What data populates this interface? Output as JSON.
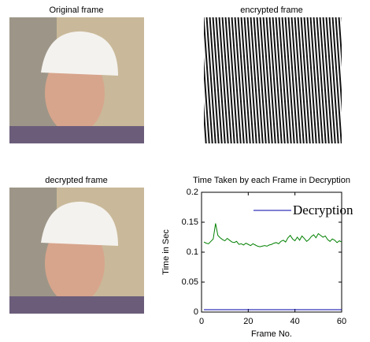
{
  "panels": {
    "original_title": "Original frame",
    "encrypted_title": "encrypted frame",
    "decrypted_title": "decrypted frame"
  },
  "chart_data": {
    "type": "line",
    "title": "Time Taken by each Frame in Decryption",
    "x_label": "Frame No.",
    "y_label": "Time in Sec",
    "x": [
      1,
      2,
      3,
      4,
      5,
      6,
      7,
      8,
      9,
      10,
      11,
      12,
      13,
      14,
      15,
      16,
      17,
      18,
      19,
      20,
      21,
      22,
      23,
      24,
      25,
      26,
      27,
      28,
      29,
      30,
      31,
      32,
      33,
      34,
      35,
      36,
      37,
      38,
      39,
      40,
      41,
      42,
      43,
      44,
      45,
      46,
      47,
      48,
      49,
      50,
      51,
      52,
      53,
      54,
      55,
      56,
      57,
      58,
      59,
      60
    ],
    "series": [
      {
        "name": "Decryption",
        "color": "#0000aa",
        "values": [
          0.004,
          0.004,
          0.004,
          0.004,
          0.004,
          0.004,
          0.004,
          0.004,
          0.004,
          0.004,
          0.004,
          0.004,
          0.004,
          0.004,
          0.004,
          0.004,
          0.004,
          0.004,
          0.004,
          0.004,
          0.004,
          0.004,
          0.004,
          0.004,
          0.004,
          0.004,
          0.004,
          0.004,
          0.004,
          0.004,
          0.004,
          0.004,
          0.004,
          0.004,
          0.004,
          0.004,
          0.004,
          0.004,
          0.004,
          0.004,
          0.004,
          0.004,
          0.004,
          0.004,
          0.004,
          0.004,
          0.004,
          0.004,
          0.004,
          0.004,
          0.004,
          0.004,
          0.004,
          0.004,
          0.004,
          0.004,
          0.004,
          0.004,
          0.004,
          0.004
        ]
      },
      {
        "color": "#008000",
        "values": [
          0.117,
          0.115,
          0.114,
          0.118,
          0.122,
          0.148,
          0.128,
          0.124,
          0.121,
          0.119,
          0.123,
          0.12,
          0.117,
          0.116,
          0.118,
          0.113,
          0.114,
          0.112,
          0.115,
          0.113,
          0.111,
          0.114,
          0.112,
          0.11,
          0.109,
          0.11,
          0.111,
          0.11,
          0.112,
          0.113,
          0.115,
          0.116,
          0.114,
          0.118,
          0.12,
          0.117,
          0.124,
          0.128,
          0.122,
          0.119,
          0.125,
          0.12,
          0.127,
          0.123,
          0.118,
          0.121,
          0.126,
          0.129,
          0.124,
          0.131,
          0.128,
          0.125,
          0.127,
          0.121,
          0.118,
          0.122,
          0.12,
          0.116,
          0.119,
          0.117
        ]
      }
    ],
    "xlim": [
      0,
      60
    ],
    "xticks": [
      0,
      20,
      40,
      60
    ],
    "ylim": [
      0,
      0.2
    ],
    "yticks": [
      0,
      0.05,
      0.1,
      0.15,
      0.2
    ],
    "legend": "upper right"
  }
}
